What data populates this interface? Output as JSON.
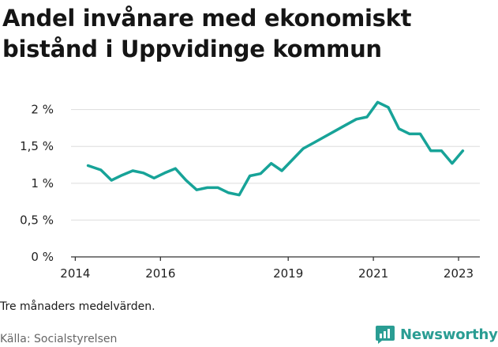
{
  "header": {
    "title": "Andel invånare med ekonomiskt bistånd i Uppvidinge kommun"
  },
  "footer": {
    "note": "Tre månaders medelvärden.",
    "source": "Källa: Socialstyrelsen",
    "brand": "Newsworthy"
  },
  "colors": {
    "line": "#17a398",
    "grid": "#dddddd",
    "brand": "#2a9d93"
  },
  "chart_data": {
    "type": "line",
    "title": "Andel invånare med ekonomiskt bistånd i Uppvidinge kommun",
    "xlabel": "",
    "ylabel": "",
    "ylim": [
      0,
      2.2
    ],
    "yticks": [
      {
        "value": 0,
        "label": "0 %"
      },
      {
        "value": 0.5,
        "label": "0,5 %"
      },
      {
        "value": 1,
        "label": "1 %"
      },
      {
        "value": 1.5,
        "label": "1,5 %"
      },
      {
        "value": 2,
        "label": "2 %"
      }
    ],
    "xticks": [
      {
        "value": 2014.0,
        "label": "2014"
      },
      {
        "value": 2016.0,
        "label": "2016"
      },
      {
        "value": 2019.0,
        "label": "2019"
      },
      {
        "value": 2021.0,
        "label": "2021"
      },
      {
        "value": 2023.0,
        "label": "2023"
      }
    ],
    "xlim": [
      2013.9,
      2023.5
    ],
    "grid": true,
    "series": [
      {
        "x": [
          2014.3,
          2014.6,
          2014.85,
          2015.1,
          2015.35,
          2015.6,
          2015.85,
          2016.1,
          2016.35,
          2016.6,
          2016.85,
          2017.1,
          2017.35,
          2017.6,
          2017.85,
          2018.1,
          2018.35,
          2018.6,
          2018.85,
          2019.1,
          2019.35,
          2019.6,
          2019.85,
          2020.1,
          2020.35,
          2020.6,
          2020.85,
          2021.1,
          2021.35,
          2021.6,
          2021.85,
          2022.1,
          2022.35,
          2022.6,
          2022.85,
          2023.1
        ],
        "y": [
          1.24,
          1.18,
          1.04,
          1.11,
          1.17,
          1.14,
          1.07,
          1.14,
          1.2,
          1.04,
          0.91,
          0.94,
          0.94,
          0.87,
          0.84,
          1.1,
          1.13,
          1.27,
          1.17,
          1.32,
          1.47,
          1.55,
          1.63,
          1.71,
          1.79,
          1.87,
          1.9,
          2.1,
          2.03,
          1.74,
          1.67,
          1.67,
          1.44,
          1.44,
          1.27,
          1.44
        ]
      }
    ]
  }
}
